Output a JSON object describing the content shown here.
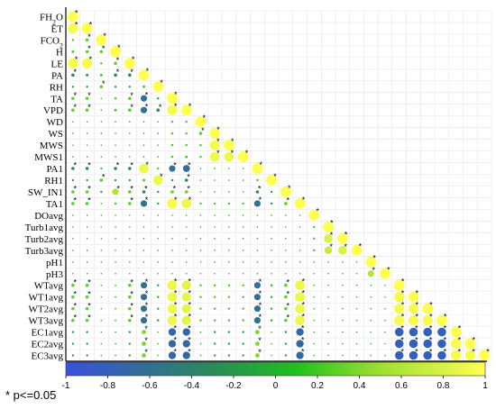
{
  "chart_data": {
    "type": "heatmap",
    "subtype": "lower-triangular correlation matrix (circle size and color = r)",
    "variables": [
      "FH2O",
      "ET",
      "FCO2",
      "H",
      "LE",
      "PA",
      "RH",
      "TA",
      "VPD",
      "WD",
      "WS",
      "MWS",
      "MWS1",
      "PA1",
      "RH1",
      "SW_IN1",
      "TA1",
      "DOavg",
      "Turb1avg",
      "Turb2avg",
      "Turb3avg",
      "pH1",
      "pH3",
      "WTavg",
      "WT1avg",
      "WT2avg",
      "WT3avg",
      "EC1avg",
      "EC2avg",
      "EC3avg"
    ],
    "display_labels": [
      "FH",
      "ET",
      "FCO",
      "H",
      "LE",
      "PA",
      "RH",
      "TA",
      "VPD",
      "WD",
      "WS",
      "MWS",
      "MWS1",
      "PA1",
      "RH1",
      "SW_IN1",
      "TA1",
      "DOavg",
      "Turb1avg",
      "Turb2avg",
      "Turb3avg",
      "pH1",
      "pH3",
      "WTavg",
      "WT1avg",
      "WT2avg",
      "WT3avg",
      "EC1avg",
      "EC2avg",
      "EC3avg"
    ],
    "subscripts": {
      "0": "2",
      "2": "2"
    },
    "label_suffix": {
      "0": "O"
    },
    "matrix_rows": [
      [
        1
      ],
      [
        0.95,
        1
      ],
      [
        0.2,
        0.3,
        1
      ],
      [
        0.25,
        0.3,
        0.3,
        1
      ],
      [
        0.95,
        0.95,
        0.2,
        0.3,
        1
      ],
      [
        -0.3,
        -0.25,
        0.25,
        -0.3,
        -0.3,
        1
      ],
      [
        -0.2,
        -0.2,
        0.3,
        -0.2,
        -0.2,
        0.25,
        1
      ],
      [
        0.3,
        0.3,
        0.1,
        0.2,
        0.3,
        -0.6,
        -0.2,
        1
      ],
      [
        0.3,
        0.3,
        0.0,
        0.25,
        0.3,
        -0.6,
        -0.3,
        0.95,
        1
      ],
      [
        0.1,
        0.1,
        0.1,
        0.1,
        0.1,
        -0.1,
        0.0,
        0.2,
        0.2,
        1
      ],
      [
        0.1,
        0.1,
        0.0,
        0.1,
        0.1,
        -0.1,
        -0.1,
        0.2,
        0.2,
        0.3,
        1
      ],
      [
        0.1,
        0.1,
        0.0,
        0.05,
        0.1,
        -0.1,
        -0.05,
        0.2,
        0.2,
        0.2,
        0.95,
        1
      ],
      [
        0.1,
        0.1,
        0.0,
        0.1,
        0.1,
        -0.1,
        -0.05,
        0.2,
        0.25,
        0.2,
        0.9,
        0.9,
        1
      ],
      [
        -0.3,
        -0.3,
        0.2,
        -0.3,
        -0.3,
        0.9,
        0.2,
        -0.6,
        -0.65,
        -0.1,
        -0.1,
        -0.1,
        -0.1,
        1
      ],
      [
        -0.2,
        -0.2,
        0.3,
        -0.2,
        -0.2,
        0.25,
        0.9,
        -0.2,
        -0.3,
        0.0,
        -0.1,
        -0.1,
        -0.1,
        0.2,
        1
      ],
      [
        0.3,
        0.3,
        -0.2,
        0.6,
        0.3,
        -0.3,
        -0.2,
        0.3,
        0.3,
        0.1,
        0.1,
        0.1,
        0.1,
        -0.3,
        -0.2,
        1
      ],
      [
        0.3,
        0.3,
        0.1,
        0.2,
        0.3,
        -0.6,
        -0.2,
        0.95,
        0.9,
        0.2,
        0.2,
        0.2,
        0.2,
        -0.6,
        -0.2,
        0.3,
        1
      ],
      [
        0.1,
        0.1,
        0.0,
        0.1,
        0.1,
        0.0,
        0.0,
        0.1,
        0.1,
        0.0,
        0.0,
        0.0,
        0.0,
        0.0,
        0.0,
        0.1,
        0.1,
        1
      ],
      [
        0.1,
        0.1,
        0.1,
        0.1,
        0.1,
        -0.1,
        0.1,
        0.1,
        0.1,
        0.0,
        0.0,
        0.0,
        0.0,
        -0.1,
        0.1,
        0.1,
        0.1,
        0.2,
        1
      ],
      [
        0.1,
        0.1,
        0.1,
        0.1,
        0.1,
        -0.1,
        0.1,
        0.1,
        0.1,
        0.0,
        0.0,
        0.0,
        0.0,
        -0.1,
        0.1,
        0.1,
        0.1,
        0.2,
        0.8,
        1
      ],
      [
        0.1,
        0.1,
        0.1,
        0.1,
        0.1,
        -0.1,
        0.1,
        0.1,
        0.1,
        0.0,
        0.0,
        0.0,
        0.0,
        -0.1,
        0.1,
        0.1,
        0.1,
        0.2,
        0.7,
        0.8,
        1
      ],
      [
        0.05,
        0.05,
        0.0,
        0.05,
        0.05,
        0.0,
        0.0,
        0.05,
        0.05,
        0.0,
        0.0,
        0.0,
        0.0,
        0.0,
        0.0,
        0.05,
        0.05,
        0.1,
        0.05,
        0.05,
        0.05,
        1
      ],
      [
        0.1,
        0.1,
        0.05,
        0.05,
        0.1,
        -0.1,
        0.0,
        0.1,
        0.1,
        0.0,
        0.0,
        0.0,
        0.0,
        -0.1,
        0.0,
        0.1,
        0.1,
        0.1,
        0.05,
        0.05,
        0.05,
        0.6,
        1
      ],
      [
        0.3,
        0.3,
        0.1,
        0.15,
        0.3,
        -0.6,
        -0.2,
        0.9,
        0.85,
        0.2,
        0.2,
        0.2,
        0.2,
        -0.6,
        -0.2,
        0.3,
        0.9,
        0.1,
        0.1,
        0.1,
        0.1,
        0.05,
        0.1,
        1
      ],
      [
        0.3,
        0.3,
        0.1,
        0.15,
        0.3,
        -0.6,
        -0.2,
        0.9,
        0.85,
        0.2,
        0.2,
        0.2,
        0.2,
        -0.6,
        -0.2,
        0.3,
        0.9,
        0.1,
        0.1,
        0.1,
        0.1,
        0.05,
        0.1,
        0.95,
        1
      ],
      [
        0.3,
        0.3,
        0.1,
        0.15,
        0.3,
        -0.6,
        -0.2,
        0.9,
        0.85,
        0.2,
        0.2,
        0.2,
        0.2,
        -0.6,
        -0.2,
        0.3,
        0.9,
        0.1,
        0.1,
        0.1,
        0.1,
        0.05,
        0.1,
        0.95,
        0.95,
        1
      ],
      [
        0.3,
        0.3,
        0.1,
        0.15,
        0.3,
        -0.6,
        -0.2,
        0.9,
        0.85,
        0.2,
        0.2,
        0.2,
        0.2,
        -0.6,
        -0.2,
        0.3,
        0.9,
        0.1,
        0.1,
        0.1,
        0.1,
        0.05,
        0.1,
        0.95,
        0.95,
        0.95,
        1
      ],
      [
        -0.2,
        -0.2,
        0.1,
        -0.1,
        -0.2,
        0.4,
        0.1,
        -0.7,
        -0.7,
        -0.1,
        -0.2,
        -0.2,
        -0.2,
        0.4,
        0.1,
        -0.2,
        -0.7,
        0.0,
        0.0,
        0.0,
        0.0,
        0.1,
        0.1,
        -0.8,
        -0.8,
        -0.8,
        -0.8,
        1
      ],
      [
        -0.2,
        -0.2,
        0.1,
        -0.1,
        -0.2,
        0.4,
        0.1,
        -0.7,
        -0.7,
        -0.1,
        -0.2,
        -0.2,
        -0.2,
        0.4,
        0.1,
        -0.2,
        -0.7,
        0.0,
        0.0,
        0.0,
        0.0,
        0.1,
        0.1,
        -0.8,
        -0.8,
        -0.8,
        -0.8,
        0.95,
        1
      ],
      [
        -0.2,
        -0.2,
        0.1,
        -0.1,
        -0.2,
        0.4,
        0.1,
        -0.7,
        -0.7,
        -0.1,
        -0.2,
        -0.2,
        -0.2,
        0.4,
        0.1,
        -0.2,
        -0.7,
        0.0,
        0.0,
        0.0,
        0.0,
        0.1,
        0.1,
        -0.8,
        -0.8,
        -0.8,
        -0.8,
        0.95,
        0.95,
        1
      ]
    ],
    "significance_rule": "|r| >= 0.3 marked with *",
    "significance_threshold": 0.3,
    "colorbar": {
      "range": [
        -1,
        1
      ],
      "ticks": [
        -1,
        -0.8,
        -0.6,
        -0.4,
        -0.2,
        0,
        0.2,
        0.4,
        0.6,
        0.8,
        1
      ],
      "tick_labels": [
        "-1",
        "-0.8",
        "-0.6",
        "-0.4",
        "-0.2",
        "0",
        "0.2",
        "0.4",
        "0.6",
        "0.8",
        "1"
      ],
      "colors": [
        "#3a4fe0",
        "#2a8a58",
        "#20c020",
        "#9ee030",
        "#ffff50"
      ]
    },
    "grid": true,
    "title": "",
    "xlabel": "",
    "ylabel": ""
  },
  "footnote": "* p<=0.05"
}
